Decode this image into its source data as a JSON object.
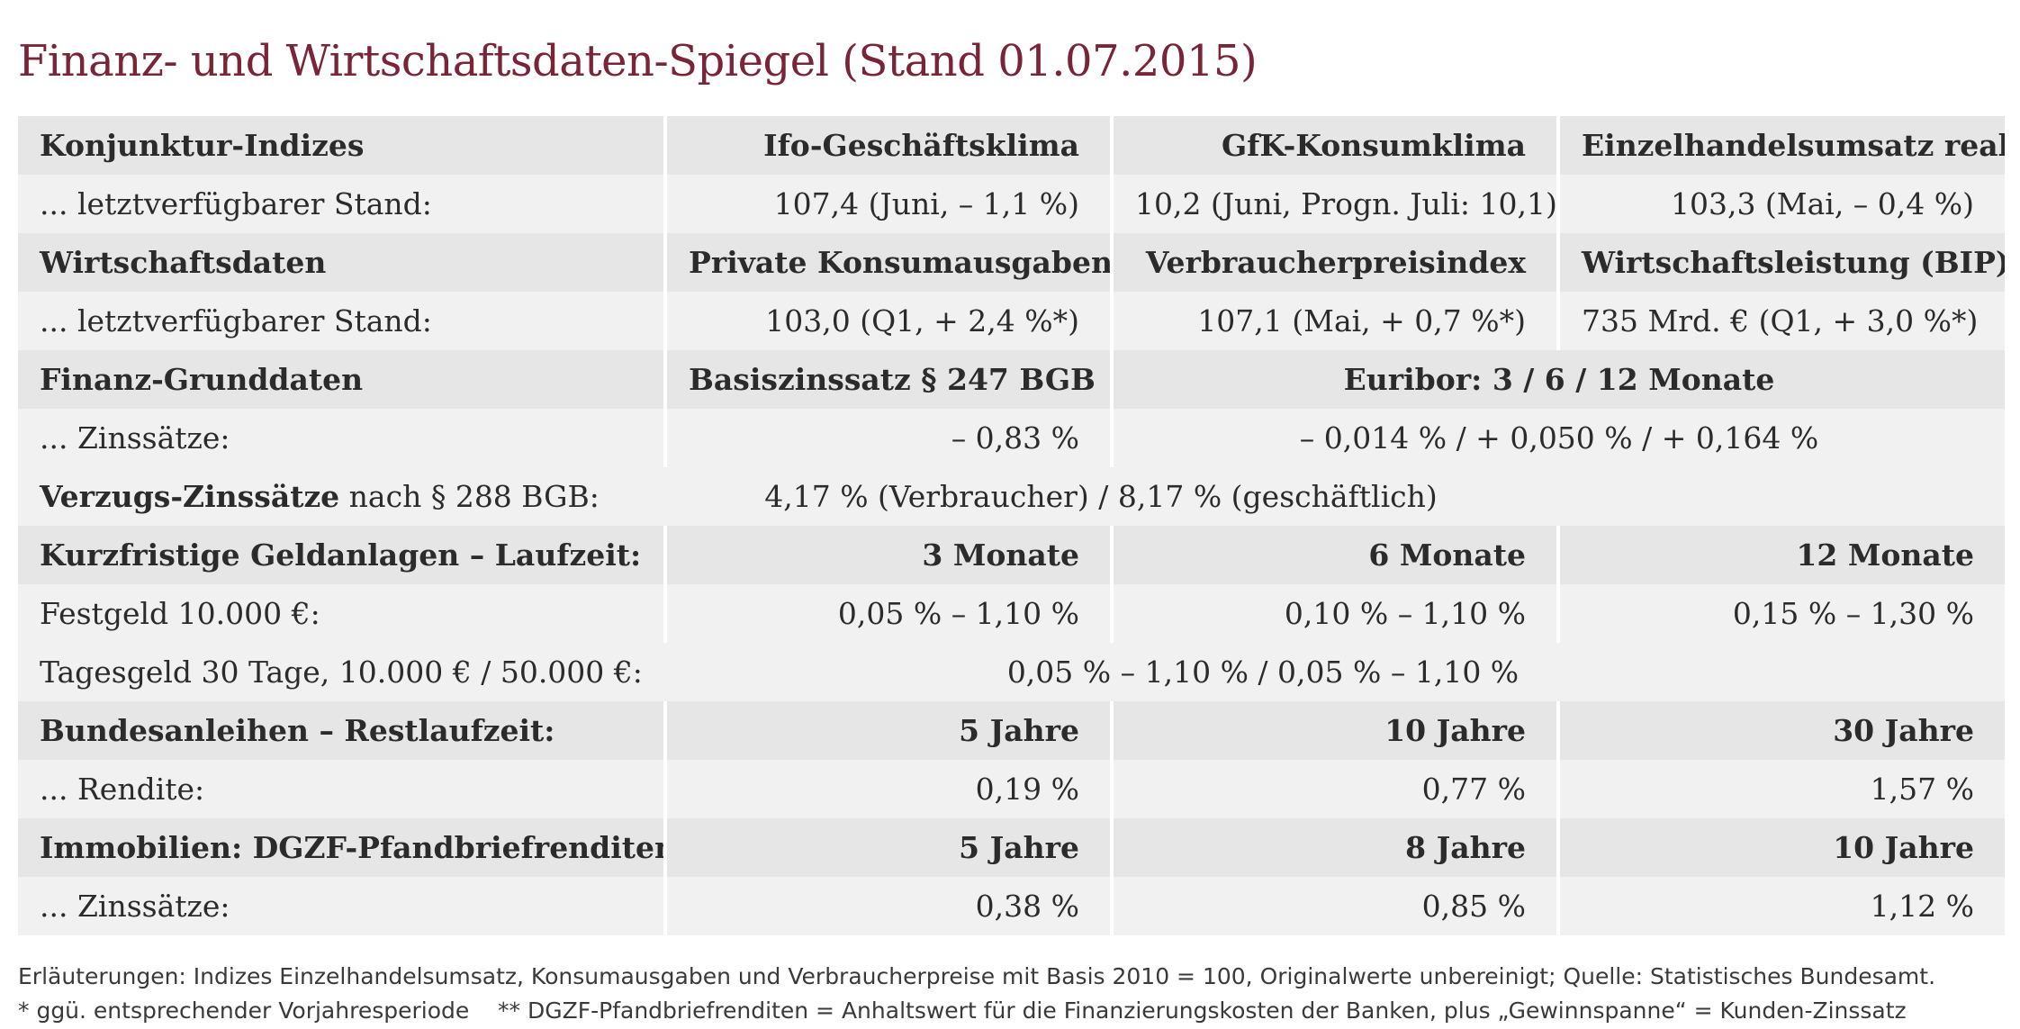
{
  "title": "Finanz- und Wirtschaftsdaten-Spiegel (Stand 01.07.2015)",
  "rows": [
    {
      "label": "Konjunktur-Indizes",
      "c1": "Ifo-Geschäftsklima",
      "c2": "GfK-Konsumklima",
      "c3": "Einzelhandelsumsatz real"
    },
    {
      "label": "... letztverfügbarer Stand:",
      "c1": "107,4 (Juni, – 1,1 %)",
      "c2": "10,2 (Juni, Progn. Juli: 10,1)",
      "c3": "103,3 (Mai, – 0,4 %)"
    },
    {
      "label": "Wirtschaftsdaten",
      "c1": "Private Konsumausgaben",
      "c2": "Verbraucherpreisindex",
      "c3": "Wirtschaftsleistung (BIP)"
    },
    {
      "label": "... letztverfügbarer Stand:",
      "c1": "103,0 (Q1, + 2,4 %*)",
      "c2": "107,1 (Mai, + 0,7 %*)",
      "c3": "735 Mrd. € (Q1, + 3,0 %*)"
    },
    {
      "label": "Finanz-Grunddaten",
      "c1": "Basiszinssatz § 247 BGB",
      "c23": "Euribor: 3 / 6 / 12 Monate"
    },
    {
      "label": "... Zinssätze:",
      "c1": "– 0,83 %",
      "c23": "– 0,014 % / + 0,050 % / + 0,164 %"
    },
    {
      "label_bold": "Verzugs-Zinssätze",
      "label_rest": " nach § 288 BGB:",
      "c123": "4,17 % (Verbraucher) / 8,17 % (geschäftlich)"
    },
    {
      "label": "Kurzfristige Geldanlagen – Laufzeit:",
      "c1": "3 Monate",
      "c2": "6 Monate",
      "c3": "12 Monate"
    },
    {
      "label": "Festgeld 10.000 €:",
      "c1": "0,05 % – 1,10 %",
      "c2": "0,10 % – 1,10 %",
      "c3": "0,15 % – 1,30 %"
    },
    {
      "label": "Tagesgeld 30 Tage, 10.000 € / 50.000 €:",
      "c123": "0,05 % – 1,10 % / 0,05 % – 1,10 %"
    },
    {
      "label": "Bundesanleihen – Restlaufzeit:",
      "c1": "5 Jahre",
      "c2": "10 Jahre",
      "c3": "30 Jahre"
    },
    {
      "label": "... Rendite:",
      "c1": "0,19 %",
      "c2": "0,77 %",
      "c3": "1,57 %"
    },
    {
      "label": "Immobilien: DGZF-Pfandbriefrenditen**",
      "c1": "5 Jahre",
      "c2": "8 Jahre",
      "c3": "10 Jahre"
    },
    {
      "label": "... Zinssätze:",
      "c1": "0,38 %",
      "c2": "0,85 %",
      "c3": "1,12 %"
    }
  ],
  "notes": {
    "line1": "Erläuterungen: Indizes Einzelhandelsumsatz, Konsumausgaben und Verbraucherpreise mit Basis 2010 = 100, Originalwerte unbereinigt; Quelle: Statistisches Bundesamt.",
    "line2": "* ggü. entsprechender Vorjahresperiode    ** DGZF-Pfandbriefrenditen = Anhaltswert für die Finanzierungskosten der Banken, plus „Gewinnspanne“ = Kunden-Zinssatz"
  },
  "colors": {
    "title": "#7a2438",
    "header_row": "#e6e6e6",
    "value_row": "#f1f1f1"
  }
}
